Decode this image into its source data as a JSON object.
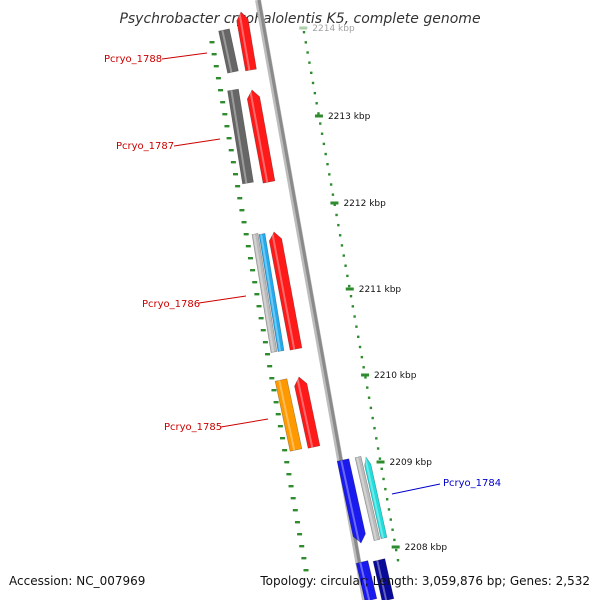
{
  "title": "Psychrobacter cryohalolentis K5, complete genome",
  "footer": {
    "accession": "Accession: NC_007969",
    "topology": "Topology: circular; Length: 3,059,876 bp; Genes: 2,532"
  },
  "colors": {
    "backbone": "#8a8a8a",
    "tick_mark": "#2e8b2e",
    "label_red": "#cc0000",
    "label_blue": "#0000cc",
    "gene_red": "#ff1a1a",
    "gene_darkgray": "#666666",
    "gene_lightgray": "#bbbbbb",
    "gene_skyblue": "#22aaee",
    "gene_orange": "#ff9900",
    "gene_blue": "#1a1aee",
    "gene_cyan": "#22dddd",
    "gene_navy": "#0a0a99"
  },
  "ticks": [
    {
      "label": "2214 kbp"
    },
    {
      "label": "2213 kbp"
    },
    {
      "label": "2212 kbp"
    },
    {
      "label": "2211 kbp"
    },
    {
      "label": "2210 kbp"
    },
    {
      "label": "2209 kbp"
    },
    {
      "label": "2208 kbp"
    }
  ],
  "gene_labels": [
    {
      "text": "Pcryo_1788",
      "color": "red"
    },
    {
      "text": "Pcryo_1787",
      "color": "red"
    },
    {
      "text": "Pcryo_1786",
      "color": "red"
    },
    {
      "text": "Pcryo_1785",
      "color": "red"
    },
    {
      "text": "Pcryo_1784",
      "color": "blue"
    }
  ]
}
